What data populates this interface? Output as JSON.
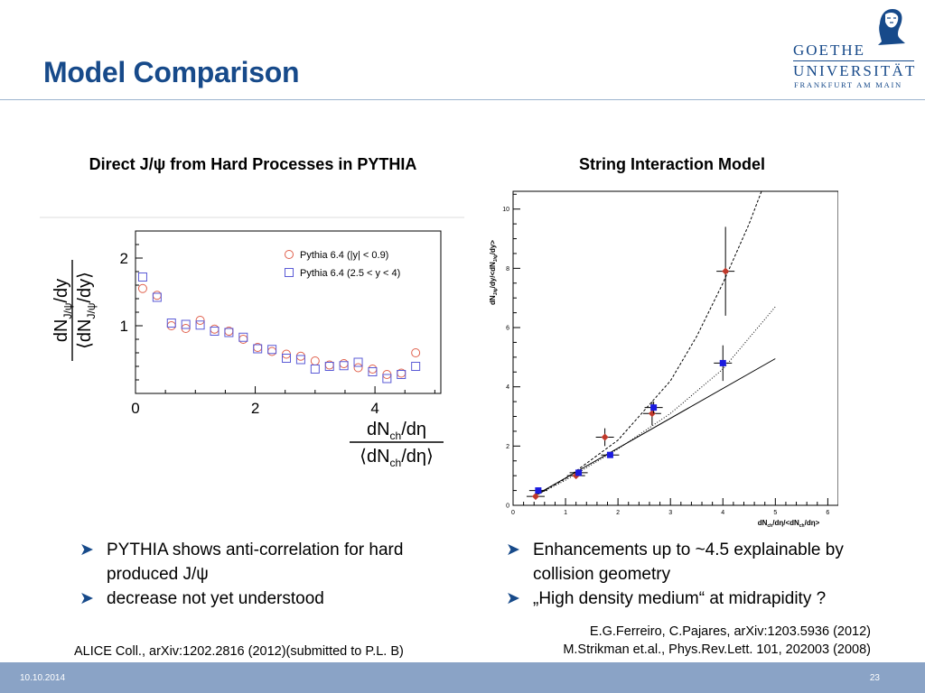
{
  "slide": {
    "title": "Model Comparison",
    "date": "10.10.2014",
    "page": "23"
  },
  "logo": {
    "line1": "GOETHE",
    "line2": "UNIVERSITÄT",
    "line3": "FRANKFURT AM MAIN"
  },
  "left": {
    "heading": "Direct J/ψ from Hard Processes in PYTHIA",
    "bullets": [
      "PYTHIA shows anti-correlation for hard produced J/ψ",
      "decrease not yet understood"
    ],
    "reference": "ALICE Coll., arXiv:1202.2816 (2012)(submitted to P.L. B)"
  },
  "right": {
    "heading": "String Interaction Model",
    "bullets": [
      "Enhancements up to ~4.5 explainable by collision geometry",
      "„High density medium“ at midrapidity ?"
    ],
    "reference_line1": "E.G.Ferreiro, C.Pajares, arXiv:1203.5936 (2012)",
    "reference_line2": "M.Strikman et.al., Phys.Rev.Lett. 101, 202003 (2008)"
  },
  "chart_data": [
    {
      "type": "scatter",
      "ylabel": "dN_J/ψ/dy / ⟨dN_J/ψ/dy⟩",
      "xlabel": "dN_ch/dη / ⟨dN_ch/dη⟩",
      "xlim": [
        0,
        5.1
      ],
      "ylim": [
        0,
        2.4
      ],
      "xticks": [
        "0",
        "2",
        "4"
      ],
      "yticks": [
        "1",
        "2"
      ],
      "legend_position": "top-right",
      "series": [
        {
          "name": "Pythia 6.4 (|y| < 0.9)",
          "marker": "circle",
          "color": "#e0604c",
          "x": [
            0.12,
            0.36,
            0.6,
            0.84,
            1.08,
            1.32,
            1.56,
            1.8,
            2.04,
            2.28,
            2.52,
            2.76,
            3.0,
            3.24,
            3.48,
            3.72,
            3.96,
            4.2,
            4.44,
            4.68
          ],
          "y": [
            1.55,
            1.45,
            1.0,
            0.96,
            1.08,
            0.95,
            0.92,
            0.8,
            0.68,
            0.62,
            0.58,
            0.55,
            0.48,
            0.42,
            0.44,
            0.38,
            0.36,
            0.28,
            0.3,
            0.6
          ]
        },
        {
          "name": "Pythia 6.4 (2.5 < y < 4)",
          "marker": "square",
          "color": "#5a5ad6",
          "x": [
            0.12,
            0.36,
            0.6,
            0.84,
            1.08,
            1.32,
            1.56,
            1.8,
            2.04,
            2.28,
            2.52,
            2.76,
            3.0,
            3.24,
            3.48,
            3.72,
            3.96,
            4.2,
            4.44,
            4.68
          ],
          "y": [
            1.72,
            1.42,
            1.04,
            1.02,
            1.01,
            0.92,
            0.9,
            0.83,
            0.66,
            0.65,
            0.52,
            0.5,
            0.36,
            0.4,
            0.41,
            0.46,
            0.32,
            0.22,
            0.28,
            0.4
          ]
        }
      ]
    },
    {
      "type": "scatter",
      "ylabel": "dN_J/ψ/dy/<dN_J/ψ/dy>",
      "xlabel": "dN_ch/dη/<dN_ch/dη>",
      "xlim": [
        0,
        6.2
      ],
      "ylim": [
        0,
        10.6
      ],
      "xticks": [
        "0",
        "1",
        "2",
        "3",
        "4",
        "5",
        "6"
      ],
      "yticks": [
        "0",
        "2",
        "4",
        "6",
        "8",
        "10"
      ],
      "series": [
        {
          "marker": "diamond",
          "color": "#c0392b",
          "x": [
            0.43,
            1.2,
            1.75,
            2.65,
            4.05
          ],
          "y": [
            0.3,
            1.0,
            2.3,
            3.1,
            7.9
          ],
          "yerr": [
            0.1,
            0.1,
            0.3,
            0.4,
            1.5
          ]
        },
        {
          "marker": "square",
          "color": "#1a1ae0",
          "x": [
            0.48,
            1.25,
            1.85,
            2.68,
            4.0
          ],
          "y": [
            0.5,
            1.1,
            1.7,
            3.3,
            4.8
          ],
          "yerr": [
            0.1,
            0.1,
            0.1,
            0.2,
            0.6
          ]
        }
      ],
      "curves": [
        {
          "style": "solid",
          "description": "linear",
          "x": [
            0.43,
            5.0
          ],
          "y": [
            0.35,
            4.95
          ]
        },
        {
          "style": "dotted",
          "x": [
            0.4,
            1.0,
            2.0,
            3.0,
            4.0,
            5.0
          ],
          "y": [
            0.3,
            0.85,
            1.9,
            3.1,
            4.6,
            6.7
          ]
        },
        {
          "style": "dashed",
          "x": [
            0.4,
            1.0,
            2.0,
            3.0,
            3.5,
            4.0,
            4.5,
            4.8
          ],
          "y": [
            0.3,
            0.9,
            2.2,
            4.2,
            5.7,
            7.5,
            9.5,
            10.9
          ]
        }
      ]
    }
  ]
}
